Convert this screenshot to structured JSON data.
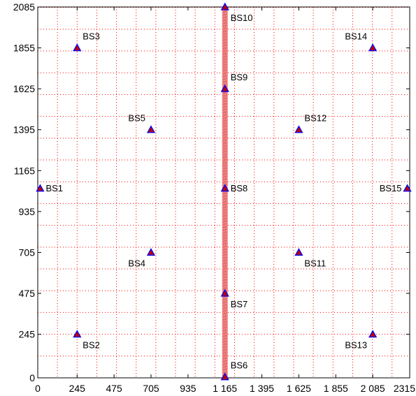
{
  "chart_data": {
    "type": "scatter",
    "title": "",
    "xlabel": "",
    "ylabel": "",
    "xlim": [
      0,
      2315
    ],
    "ylim": [
      0,
      2085
    ],
    "grid": true,
    "x_ticks": [
      0,
      245,
      475,
      705,
      935,
      1165,
      1395,
      1625,
      1855,
      2085,
      2315
    ],
    "x_tick_labels": [
      "0",
      "245",
      "475",
      "705",
      "935",
      "1 165",
      "1 395",
      "1 625",
      "1 855",
      "2 085",
      "2315"
    ],
    "y_ticks": [
      0,
      245,
      475,
      705,
      935,
      1165,
      1395,
      1625,
      1855,
      2085
    ],
    "y_tick_labels": [
      "0",
      "245",
      "475",
      "705",
      "935",
      "1165",
      "1395",
      "1625",
      "1855",
      "2085"
    ],
    "points": [
      {
        "label": "BS1",
        "x": 15,
        "y": 1065,
        "label_side": "right"
      },
      {
        "label": "BS2",
        "x": 245,
        "y": 245,
        "label_side": "below-right"
      },
      {
        "label": "BS3",
        "x": 245,
        "y": 1855,
        "label_side": "above-right"
      },
      {
        "label": "BS4",
        "x": 705,
        "y": 705,
        "label_side": "below-left"
      },
      {
        "label": "BS5",
        "x": 705,
        "y": 1395,
        "label_side": "above-left"
      },
      {
        "label": "BS6",
        "x": 1165,
        "y": 5,
        "label_side": "above-right"
      },
      {
        "label": "BS7",
        "x": 1165,
        "y": 475,
        "label_side": "below-right"
      },
      {
        "label": "BS8",
        "x": 1165,
        "y": 1065,
        "label_side": "right"
      },
      {
        "label": "BS9",
        "x": 1165,
        "y": 1625,
        "label_side": "above-right"
      },
      {
        "label": "BS10",
        "x": 1165,
        "y": 2085,
        "label_side": "below-right"
      },
      {
        "label": "BS11",
        "x": 1625,
        "y": 705,
        "label_side": "below-right"
      },
      {
        "label": "BS12",
        "x": 1625,
        "y": 1395,
        "label_side": "above-right"
      },
      {
        "label": "BS13",
        "x": 2085,
        "y": 245,
        "label_side": "below-left"
      },
      {
        "label": "BS14",
        "x": 2085,
        "y": 1855,
        "label_side": "above-left"
      },
      {
        "label": "BS15",
        "x": 2300,
        "y": 1065,
        "label_side": "left"
      }
    ],
    "route": {
      "x": 1165,
      "y_from": 0,
      "y_to": 2085,
      "color": "#f08080"
    },
    "marker_fill": "#c00000",
    "marker_edge": "#0000ff",
    "grid_color": "#ff0000"
  }
}
